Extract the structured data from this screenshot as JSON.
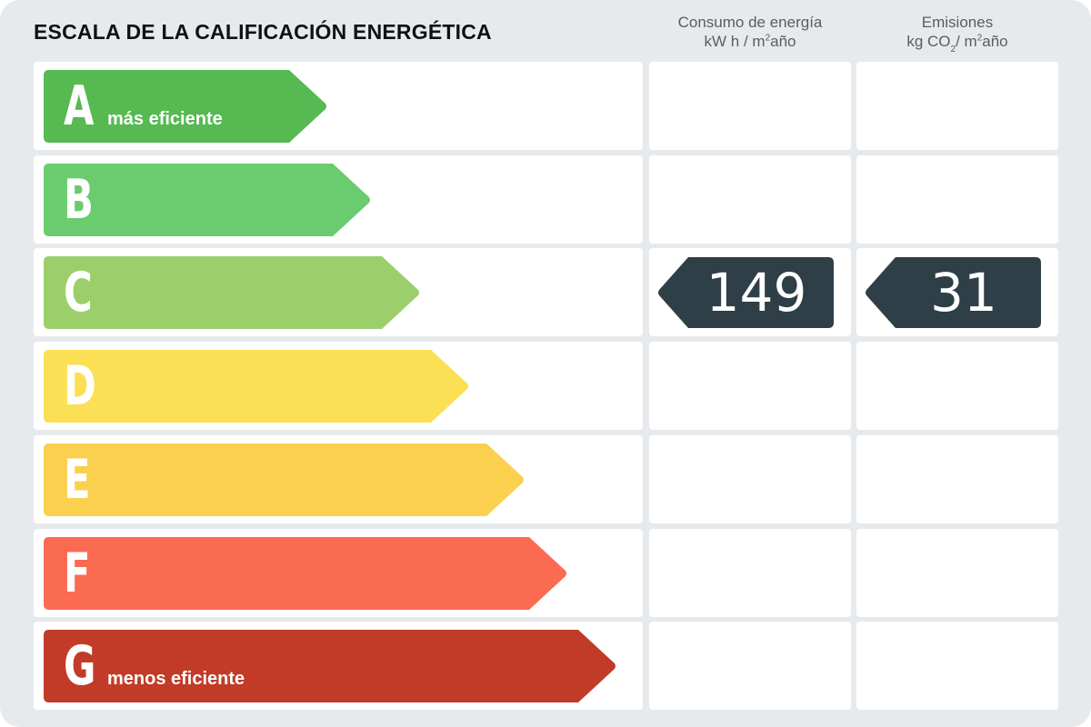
{
  "title": "ESCALA DE LA CALIFICACIÓN ENERGÉTICA",
  "columns": {
    "energy": {
      "line1": "Consumo de energía",
      "line2_a": "kW h / m",
      "line2_sup": "2",
      "line2_b": "año"
    },
    "emissions": {
      "line1": "Emisiones",
      "line2_a": "kg CO",
      "line2_sub": "2",
      "line2_mid": "/ m",
      "line2_sup": "2",
      "line2_b": "año"
    }
  },
  "classes": [
    {
      "letter": "A",
      "label": "más eficiente",
      "color": "#56b952"
    },
    {
      "letter": "B",
      "label": "",
      "color": "#6bcb6f"
    },
    {
      "letter": "C",
      "label": "",
      "color": "#9ccf6b"
    },
    {
      "letter": "D",
      "label": "",
      "color": "#fbe055"
    },
    {
      "letter": "E",
      "label": "",
      "color": "#fbd04f"
    },
    {
      "letter": "F",
      "label": "",
      "color": "#fb6b52"
    },
    {
      "letter": "G",
      "label": "menos eficiente",
      "color": "#c13b28"
    }
  ],
  "rating": {
    "energy_class": "C",
    "energy_value": "149",
    "emissions_class": "C",
    "emissions_value": "31",
    "indicator_color": "#2e3f48"
  }
}
